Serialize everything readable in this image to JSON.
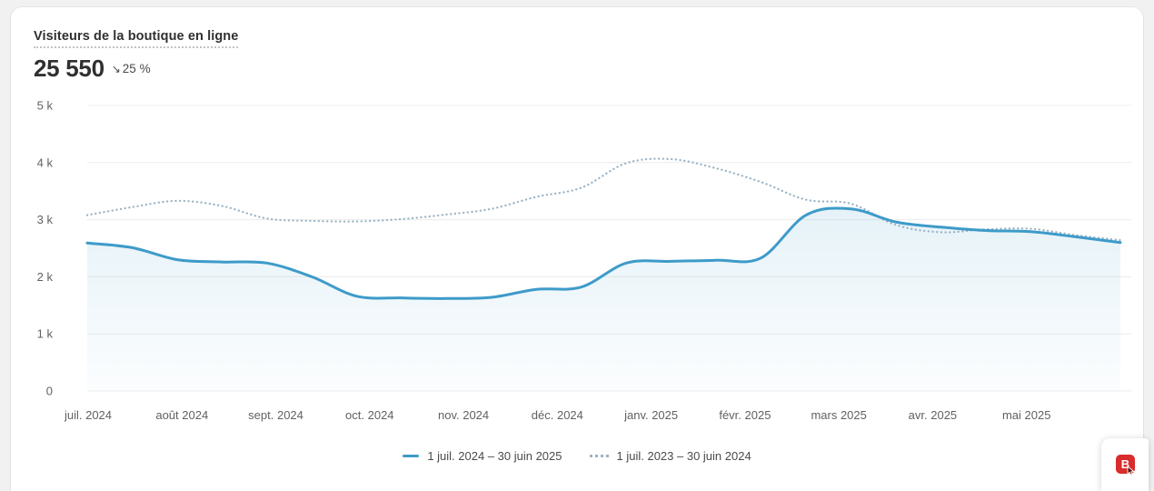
{
  "header": {
    "title": "Visiteurs de la boutique en ligne",
    "value": "25 550",
    "delta_arrow": "↘",
    "delta_percent": "25 %"
  },
  "chart_data": {
    "type": "line",
    "title": "Visiteurs de la boutique en ligne",
    "ylim": [
      0,
      5000
    ],
    "grid": true,
    "legend_position": "bottom",
    "y_tick_labels": [
      "5 k",
      "4 k",
      "3 k",
      "2 k",
      "1 k",
      "0"
    ],
    "y_tick_values": [
      5000,
      4000,
      3000,
      2000,
      1000,
      0
    ],
    "x_labels": [
      "juil. 2024",
      "août 2024",
      "sept. 2024",
      "oct. 2024",
      "nov. 2024",
      "déc. 2024",
      "janv. 2025",
      "févr. 2025",
      "mars 2025",
      "avr. 2025",
      "mai 2025"
    ],
    "series": [
      {
        "name": "1 juil. 2024 – 30 juin 2025",
        "style": "solid",
        "color": "#3d9bc9",
        "fill": true,
        "values": [
          2590,
          2510,
          2300,
          2260,
          2240,
          2000,
          1660,
          1630,
          1620,
          1640,
          1780,
          1820,
          2240,
          2270,
          2290,
          2330,
          3080,
          3190,
          2960,
          2870,
          2810,
          2790,
          2700,
          2600
        ]
      },
      {
        "name": "1 juil. 2023 – 30 juin 2024",
        "style": "dotted",
        "color": "#9bb3c4",
        "fill": false,
        "values": [
          3080,
          3220,
          3330,
          3240,
          3020,
          2980,
          2970,
          3010,
          3090,
          3190,
          3400,
          3560,
          3990,
          4060,
          3900,
          3660,
          3350,
          3280,
          2910,
          2780,
          2830,
          2840,
          2730,
          2640
        ]
      }
    ]
  },
  "colors": {
    "page_bg": "#f1f1f2",
    "card_bg": "#ffffff",
    "grid_line": "#ececec",
    "axis_text": "#616161",
    "title_text": "#303030",
    "legend_text": "#4a4a4a",
    "extension_red": "#d92c2c"
  },
  "overlay": {
    "icon_letter": "B"
  }
}
